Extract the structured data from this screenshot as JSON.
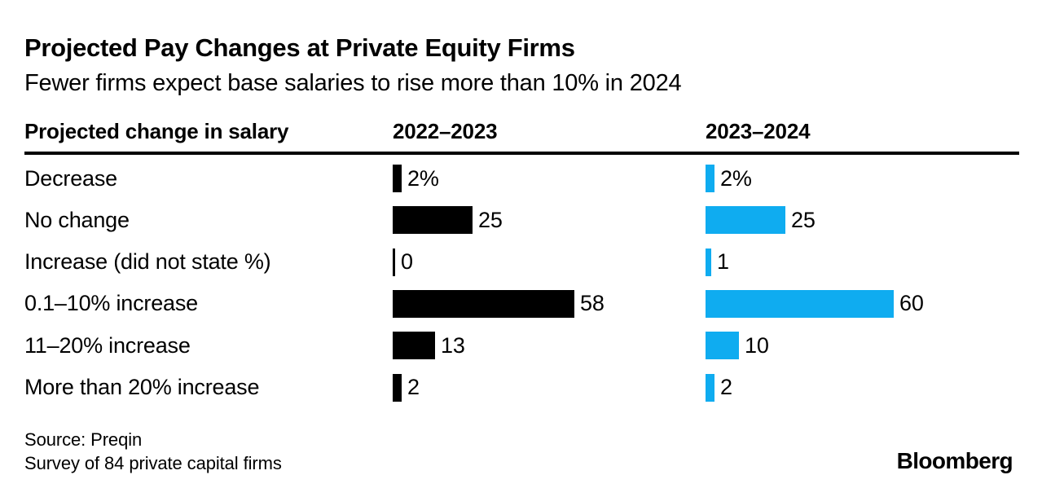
{
  "header": {
    "title": "Projected Pay Changes at Private Equity Firms",
    "subtitle": "Fewer firms expect base salaries to rise more than 10% in 2024"
  },
  "table": {
    "category_header": "Projected change in salary",
    "col1_header": "2022–2023",
    "col2_header": "2023–2024"
  },
  "chart_data": {
    "type": "bar",
    "orientation": "horizontal",
    "title": "Projected Pay Changes at Private Equity Firms",
    "subtitle": "Fewer firms expect base salaries to rise more than 10% in 2024",
    "categories_label": "Projected change in salary",
    "categories": [
      "Decrease",
      "No change",
      "Increase (did not state %)",
      "0.1–10% increase",
      "11–20% increase",
      "More than 20% increase"
    ],
    "series": [
      {
        "name": "2022–2023",
        "color": "#000000",
        "values": [
          2,
          25,
          0,
          58,
          13,
          2
        ],
        "labels": [
          "2%",
          "25",
          "0",
          "58",
          "13",
          "2"
        ]
      },
      {
        "name": "2023–2024",
        "color": "#0FACF0",
        "values": [
          2,
          25,
          1,
          60,
          10,
          2
        ],
        "labels": [
          "2%",
          "25",
          "1",
          "60",
          "10",
          "2"
        ]
      }
    ],
    "xlim": [
      0,
      60
    ],
    "grid": false,
    "legend_position": "column-headers"
  },
  "footer": {
    "source_line1": "Source: Preqin",
    "source_line2": "Survey of 84 private capital firms",
    "brand": "Bloomberg"
  }
}
